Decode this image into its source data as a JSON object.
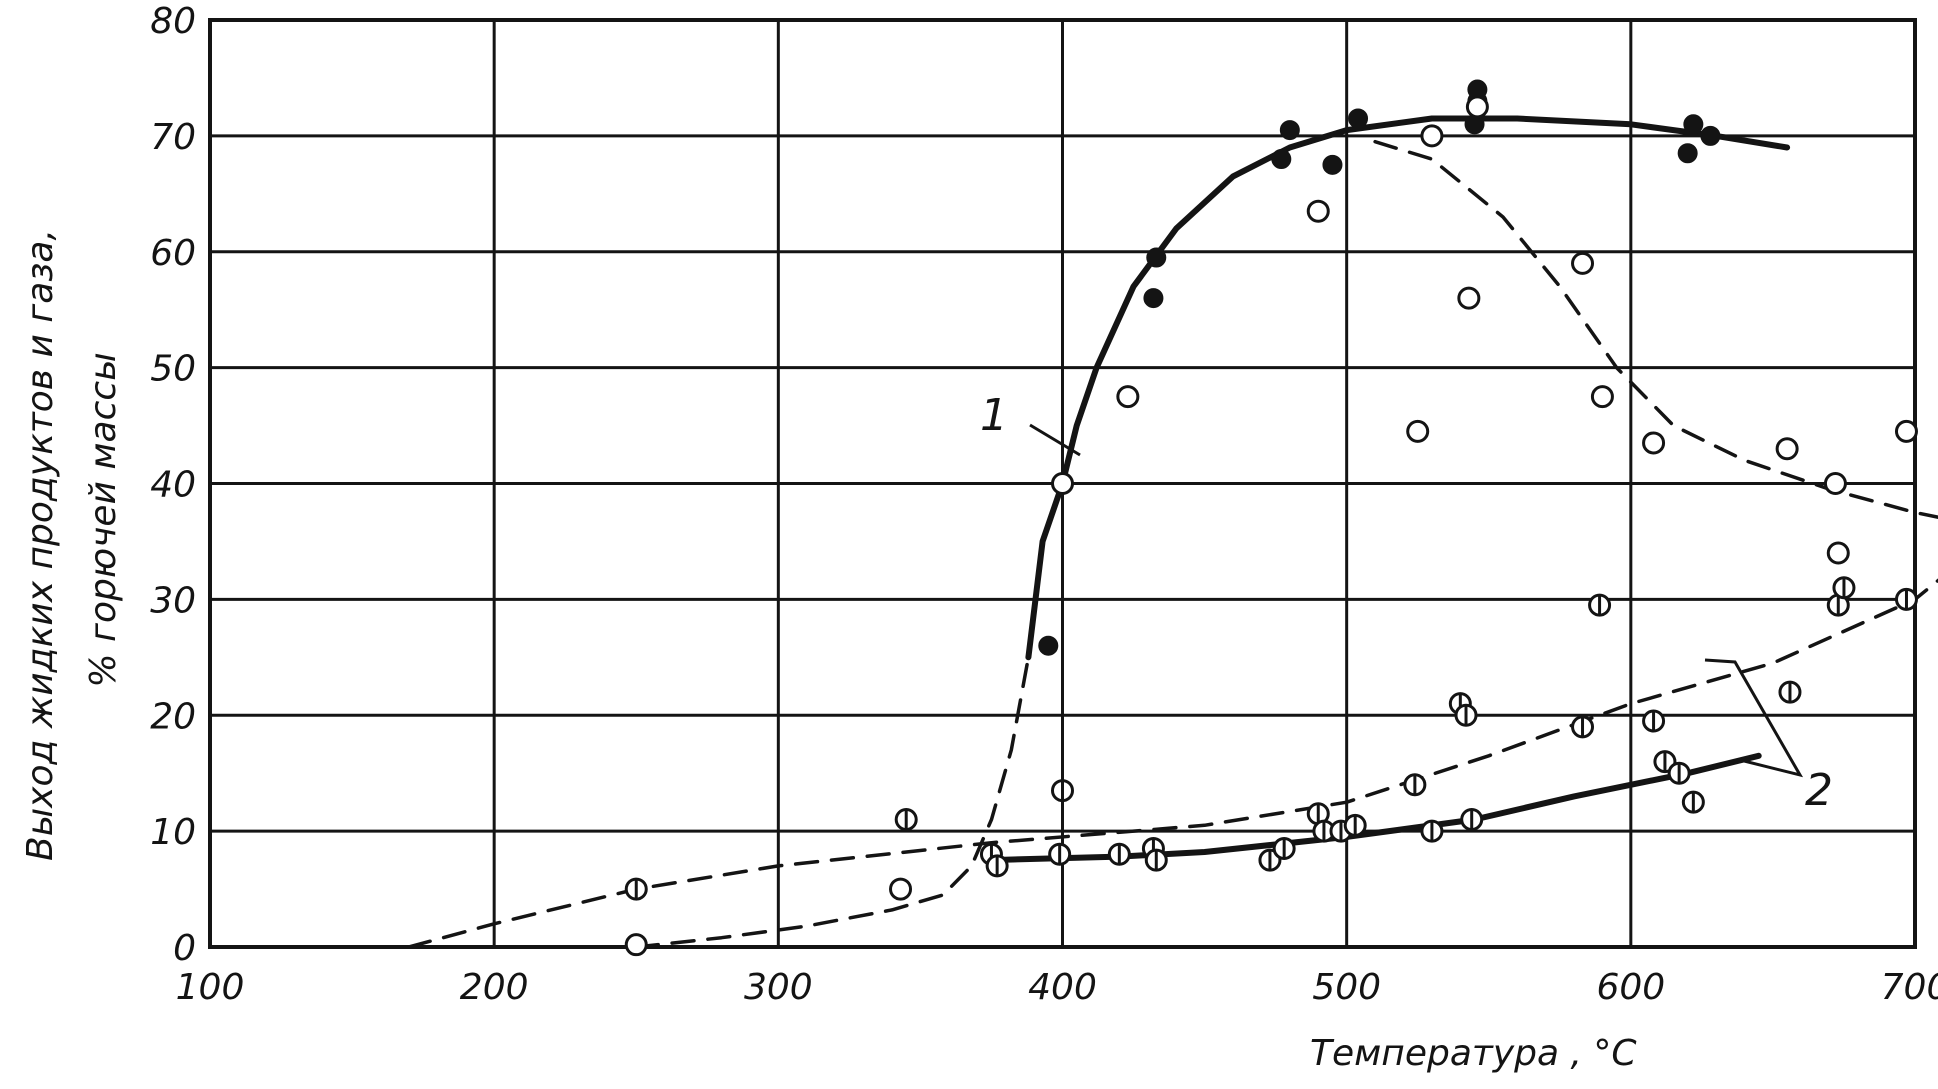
{
  "chart_data": {
    "type": "scatter",
    "xlabel": "Температура , °C",
    "ylabel": [
      "Выход жидких продуктов и газа,",
      "% горючей массы"
    ],
    "xlim": [
      100,
      700
    ],
    "ylim": [
      0,
      80
    ],
    "x_ticks": [
      100,
      200,
      300,
      400,
      500,
      600,
      700
    ],
    "y_ticks": [
      0,
      10,
      20,
      30,
      40,
      50,
      60,
      70,
      80
    ],
    "x_tick_labels": [
      "100",
      "200",
      "300",
      "400",
      "500",
      "600",
      "700"
    ],
    "y_tick_labels": [
      "0",
      "10",
      "20",
      "30",
      "40",
      "50",
      "60",
      "70",
      "80"
    ],
    "grid": true,
    "annotations": [
      "1",
      "2"
    ],
    "curves": [
      {
        "label": "1",
        "style": "solid",
        "points": [
          [
            388,
            25
          ],
          [
            393,
            35
          ],
          [
            400,
            40
          ],
          [
            405,
            45
          ],
          [
            412,
            50
          ],
          [
            425,
            57
          ],
          [
            440,
            62
          ],
          [
            460,
            66.5
          ],
          [
            480,
            69
          ],
          [
            500,
            70.5
          ],
          [
            530,
            71.5
          ],
          [
            560,
            71.5
          ],
          [
            600,
            71
          ],
          [
            630,
            70
          ],
          [
            655,
            69
          ]
        ]
      },
      {
        "label": "1",
        "style": "dashed",
        "points": [
          [
            250,
            0
          ],
          [
            280,
            0.8
          ],
          [
            310,
            1.8
          ],
          [
            340,
            3.2
          ],
          [
            358,
            4.5
          ],
          [
            368,
            7
          ],
          [
            375,
            11
          ],
          [
            382,
            17
          ],
          [
            388,
            25
          ]
        ]
      },
      {
        "label": "",
        "style": "dashed",
        "points": [
          [
            510,
            69.5
          ],
          [
            530,
            68
          ],
          [
            555,
            63
          ],
          [
            575,
            57
          ],
          [
            595,
            50
          ],
          [
            615,
            45
          ],
          [
            640,
            42
          ],
          [
            670,
            39.5
          ],
          [
            700,
            37.5
          ],
          [
            710,
            37
          ]
        ]
      },
      {
        "label": "2",
        "style": "dashed",
        "points": [
          [
            170,
            0
          ],
          [
            200,
            2
          ],
          [
            250,
            5
          ],
          [
            300,
            7
          ],
          [
            375,
            9
          ],
          [
            450,
            10.5
          ],
          [
            500,
            12.5
          ],
          [
            550,
            16.5
          ],
          [
            600,
            21
          ],
          [
            650,
            24.5
          ],
          [
            700,
            30
          ],
          [
            710,
            32
          ]
        ]
      },
      {
        "label": "2",
        "style": "solid",
        "points": [
          [
            375,
            7.5
          ],
          [
            420,
            7.8
          ],
          [
            450,
            8.2
          ],
          [
            500,
            9.5
          ],
          [
            545,
            11
          ],
          [
            580,
            13
          ],
          [
            620,
            15
          ],
          [
            645,
            16.5
          ]
        ]
      }
    ],
    "points_filled": [
      [
        395,
        26
      ],
      [
        432,
        56
      ],
      [
        433,
        59.5
      ],
      [
        477,
        68
      ],
      [
        480,
        70.5
      ],
      [
        495,
        67.5
      ],
      [
        504,
        71.5
      ],
      [
        545,
        71
      ],
      [
        546,
        73
      ],
      [
        546,
        74
      ],
      [
        620,
        68.5
      ],
      [
        622,
        71
      ],
      [
        628,
        70
      ]
    ],
    "points_open": [
      [
        250,
        0.2
      ],
      [
        343,
        5
      ],
      [
        400,
        40
      ],
      [
        423,
        47.5
      ],
      [
        490,
        63.5
      ],
      [
        525,
        44.5
      ],
      [
        530,
        70
      ],
      [
        543,
        56
      ],
      [
        546,
        72.5
      ],
      [
        583,
        59
      ],
      [
        590,
        47.5
      ],
      [
        608,
        43.5
      ],
      [
        655,
        43
      ],
      [
        672,
        40
      ],
      [
        673,
        34
      ],
      [
        697,
        44.5
      ]
    ],
    "points_crossed": [
      [
        250,
        5
      ],
      [
        345,
        11
      ],
      [
        375,
        8
      ],
      [
        377,
        7
      ],
      [
        399,
        8
      ],
      [
        400,
        13.5
      ],
      [
        420,
        8
      ],
      [
        432,
        8.5
      ],
      [
        433,
        7.5
      ],
      [
        473,
        7.5
      ],
      [
        478,
        8.5
      ],
      [
        490,
        11.5
      ],
      [
        492,
        10
      ],
      [
        498,
        10
      ],
      [
        503,
        10.5
      ],
      [
        524,
        14
      ],
      [
        530,
        10
      ],
      [
        540,
        21
      ],
      [
        542,
        20
      ],
      [
        544,
        11
      ],
      [
        583,
        19
      ],
      [
        589,
        29.5
      ],
      [
        608,
        19.5
      ],
      [
        612,
        16
      ],
      [
        617,
        15
      ],
      [
        622,
        12.5
      ],
      [
        656,
        22
      ],
      [
        673,
        29.5
      ],
      [
        675,
        31
      ],
      [
        697,
        30
      ]
    ]
  }
}
